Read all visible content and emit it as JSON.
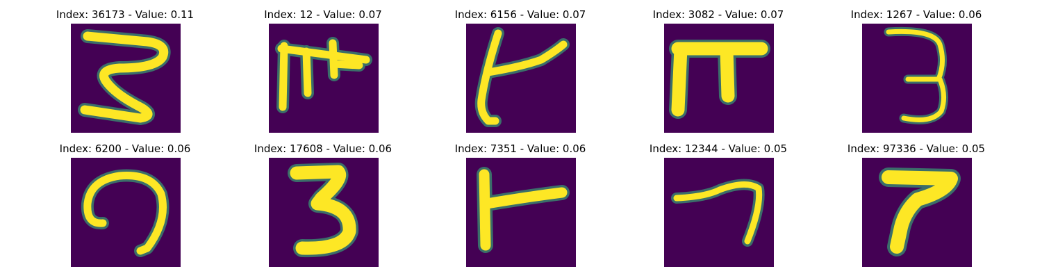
{
  "colors": {
    "background": "#440154",
    "stroke": "#fde725",
    "edge": "#35b779"
  },
  "grid": [
    {
      "title": "Index: 36173 - Value: 0.11",
      "glyph": "glyph-s3"
    },
    {
      "title": "Index: 12 - Value: 0.07",
      "glyph": "glyph-pi-cross"
    },
    {
      "title": "Index: 6156 - Value: 0.07",
      "glyph": "glyph-k"
    },
    {
      "title": "Index: 3082 - Value: 0.07",
      "glyph": "glyph-pi"
    },
    {
      "title": "Index: 1267 - Value: 0.06",
      "glyph": "glyph-3-thin"
    },
    {
      "title": "Index: 6200 - Value: 0.06",
      "glyph": "glyph-loop"
    },
    {
      "title": "Index: 17608 - Value: 0.06",
      "glyph": "glyph-3-bold"
    },
    {
      "title": "Index: 7351 - Value: 0.06",
      "glyph": "glyph-r"
    },
    {
      "title": "Index: 12344 - Value: 0.05",
      "glyph": "glyph-7"
    },
    {
      "title": "Index: 97336 - Value: 0.05",
      "glyph": "glyph-p"
    }
  ]
}
